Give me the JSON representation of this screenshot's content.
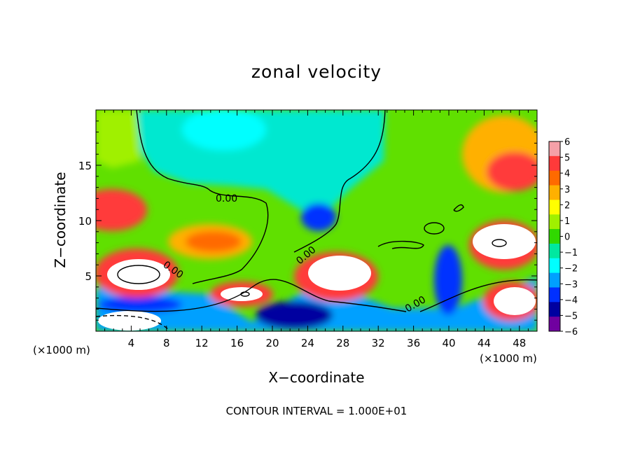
{
  "chart_data": {
    "type": "heatmap",
    "title": "zonal velocity",
    "xlabel": "X−coordinate",
    "ylabel": "Z−coordinate",
    "x_unit_label": "(×1000 m)",
    "x_ticks": [
      4,
      8,
      12,
      16,
      20,
      24,
      28,
      32,
      36,
      40,
      44,
      48
    ],
    "y_ticks": [
      5,
      10,
      15
    ],
    "xlim": [
      0,
      50
    ],
    "ylim": [
      0,
      20
    ],
    "colorbar": {
      "ticks": [
        "6",
        "5",
        "4",
        "3",
        "2",
        "1",
        "0",
        "−1",
        "−2",
        "−3",
        "−4",
        "−5",
        "−6"
      ],
      "colors": [
        "#f5a0a8",
        "#ff3a3a",
        "#ff6a00",
        "#ffb000",
        "#ffff00",
        "#a0f000",
        "#30d800",
        "#00e8a0",
        "#00ffff",
        "#00a0ff",
        "#0030ff",
        "#0000a0",
        "#7000a0"
      ]
    },
    "contour_label": "0.00",
    "footnote": "CONTOUR INTERVAL = 1.000E+01"
  }
}
